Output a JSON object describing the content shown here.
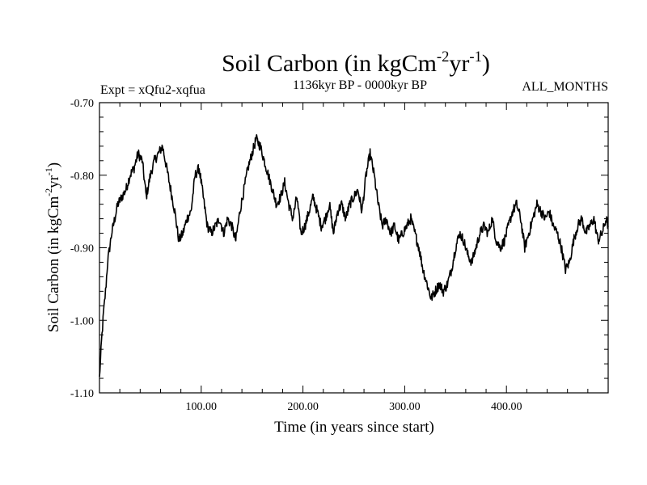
{
  "chart_data": {
    "type": "line",
    "title": "Soil Carbon (in kgCm",
    "title_sup1": "-2",
    "title_mid": "yr",
    "title_sup2": "-1",
    "title_end": ")",
    "expt_label": "Expt = xQfu2-xqfua",
    "period_label": "1136kyr BP - 0000kyr BP",
    "months_label": "ALL_MONTHS",
    "xlabel": "Time (in years since start)",
    "ylabel": "Soil Carbon (in kgCm",
    "ylabel_sup1": "-2",
    "ylabel_mid": "yr",
    "ylabel_sup2": "-1",
    "ylabel_end": ")",
    "xlim": [
      0,
      500
    ],
    "ylim": [
      -1.1,
      -0.7
    ],
    "x_ticks": [
      100,
      200,
      300,
      400
    ],
    "x_tick_labels": [
      "100.00",
      "200.00",
      "300.00",
      "400.00"
    ],
    "y_ticks": [
      -0.7,
      -0.8,
      -0.9,
      -1.0,
      -1.1
    ],
    "y_tick_labels": [
      "-0.70",
      "-0.80",
      "-0.90",
      "-1.00",
      "-1.10"
    ],
    "series": [
      {
        "name": "Soil Carbon",
        "x": [
          0,
          2,
          4,
          6,
          8,
          10,
          12,
          15,
          18,
          22,
          26,
          30,
          34,
          38,
          42,
          46,
          50,
          54,
          58,
          62,
          66,
          70,
          74,
          78,
          82,
          86,
          90,
          94,
          98,
          102,
          106,
          110,
          114,
          118,
          122,
          126,
          130,
          134,
          138,
          142,
          146,
          150,
          154,
          158,
          162,
          166,
          170,
          174,
          178,
          182,
          186,
          190,
          194,
          198,
          202,
          206,
          210,
          214,
          218,
          222,
          226,
          230,
          234,
          238,
          242,
          246,
          250,
          254,
          258,
          262,
          266,
          270,
          274,
          278,
          282,
          286,
          290,
          294,
          298,
          302,
          306,
          310,
          314,
          318,
          322,
          326,
          330,
          334,
          338,
          342,
          346,
          350,
          354,
          358,
          362,
          366,
          370,
          374,
          378,
          382,
          386,
          390,
          394,
          398,
          402,
          406,
          410,
          414,
          418,
          422,
          426,
          430,
          434,
          438,
          442,
          446,
          450,
          454,
          458,
          462,
          466,
          470,
          474,
          478,
          482,
          486,
          490,
          494,
          498,
          500
        ],
        "y": [
          -1.08,
          -1.03,
          -0.99,
          -0.96,
          -0.92,
          -0.9,
          -0.88,
          -0.86,
          -0.84,
          -0.83,
          -0.82,
          -0.8,
          -0.79,
          -0.77,
          -0.78,
          -0.83,
          -0.8,
          -0.78,
          -0.77,
          -0.76,
          -0.79,
          -0.82,
          -0.85,
          -0.89,
          -0.88,
          -0.86,
          -0.85,
          -0.8,
          -0.79,
          -0.83,
          -0.87,
          -0.88,
          -0.87,
          -0.86,
          -0.88,
          -0.86,
          -0.87,
          -0.89,
          -0.85,
          -0.82,
          -0.79,
          -0.77,
          -0.75,
          -0.76,
          -0.78,
          -0.8,
          -0.82,
          -0.84,
          -0.83,
          -0.81,
          -0.84,
          -0.86,
          -0.83,
          -0.88,
          -0.87,
          -0.85,
          -0.83,
          -0.85,
          -0.87,
          -0.86,
          -0.84,
          -0.88,
          -0.85,
          -0.84,
          -0.86,
          -0.84,
          -0.83,
          -0.82,
          -0.85,
          -0.8,
          -0.77,
          -0.8,
          -0.84,
          -0.87,
          -0.86,
          -0.88,
          -0.87,
          -0.89,
          -0.88,
          -0.87,
          -0.86,
          -0.88,
          -0.9,
          -0.93,
          -0.95,
          -0.97,
          -0.96,
          -0.95,
          -0.96,
          -0.95,
          -0.93,
          -0.9,
          -0.88,
          -0.89,
          -0.91,
          -0.92,
          -0.9,
          -0.88,
          -0.87,
          -0.88,
          -0.86,
          -0.89,
          -0.9,
          -0.89,
          -0.87,
          -0.85,
          -0.84,
          -0.86,
          -0.9,
          -0.88,
          -0.86,
          -0.84,
          -0.85,
          -0.86,
          -0.85,
          -0.87,
          -0.88,
          -0.9,
          -0.93,
          -0.92,
          -0.89,
          -0.87,
          -0.86,
          -0.88,
          -0.87,
          -0.86,
          -0.89,
          -0.88,
          -0.86,
          -0.87
        ]
      }
    ]
  }
}
